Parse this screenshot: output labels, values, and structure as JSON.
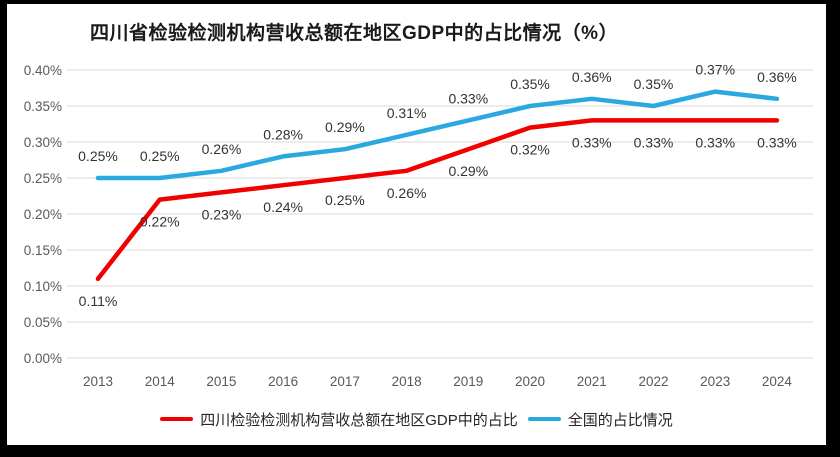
{
  "page": {
    "background": "#ffffff",
    "frame_color": "#000000"
  },
  "chart_data": {
    "type": "line",
    "title": "四川省检验检测机构营收总额在地区GDP中的占比情况（%）",
    "x": [
      "2013",
      "2014",
      "2015",
      "2016",
      "2017",
      "2018",
      "2019",
      "2020",
      "2021",
      "2022",
      "2023",
      "2024"
    ],
    "series": [
      {
        "key": "sichuan",
        "name": "四川检验检测机构营收总额在地区GDP中的占比",
        "color": "#F20000",
        "values": [
          0.11,
          0.22,
          0.23,
          0.24,
          0.25,
          0.26,
          0.29,
          0.32,
          0.33,
          0.33,
          0.33,
          0.33
        ],
        "labels": [
          "0.11%",
          "0.22%",
          "0.23%",
          "0.24%",
          "0.25%",
          "0.26%",
          "0.29%",
          "0.32%",
          "0.33%",
          "0.33%",
          "0.33%",
          "0.33%"
        ],
        "label_position": "below"
      },
      {
        "key": "national",
        "name": "全国的占比情况",
        "color": "#29A9E0",
        "values": [
          0.25,
          0.25,
          0.26,
          0.28,
          0.29,
          0.31,
          0.33,
          0.35,
          0.36,
          0.35,
          0.37,
          0.36
        ],
        "labels": [
          "0.25%",
          "0.25%",
          "0.26%",
          "0.28%",
          "0.29%",
          "0.31%",
          "0.33%",
          "0.35%",
          "0.36%",
          "0.35%",
          "0.37%",
          "0.36%"
        ],
        "label_position": "above"
      }
    ],
    "y_axis": {
      "min": 0,
      "max": 0.4,
      "step": 0.05,
      "unit": "%",
      "tick_labels": [
        "0.00%",
        "0.05%",
        "0.10%",
        "0.15%",
        "0.20%",
        "0.25%",
        "0.30%",
        "0.35%",
        "0.40%"
      ]
    },
    "grid": true,
    "legend_position": "bottom",
    "colors": {
      "gridline": "#D9D9D9",
      "axis_text": "#595959",
      "data_label": "#333333"
    }
  }
}
